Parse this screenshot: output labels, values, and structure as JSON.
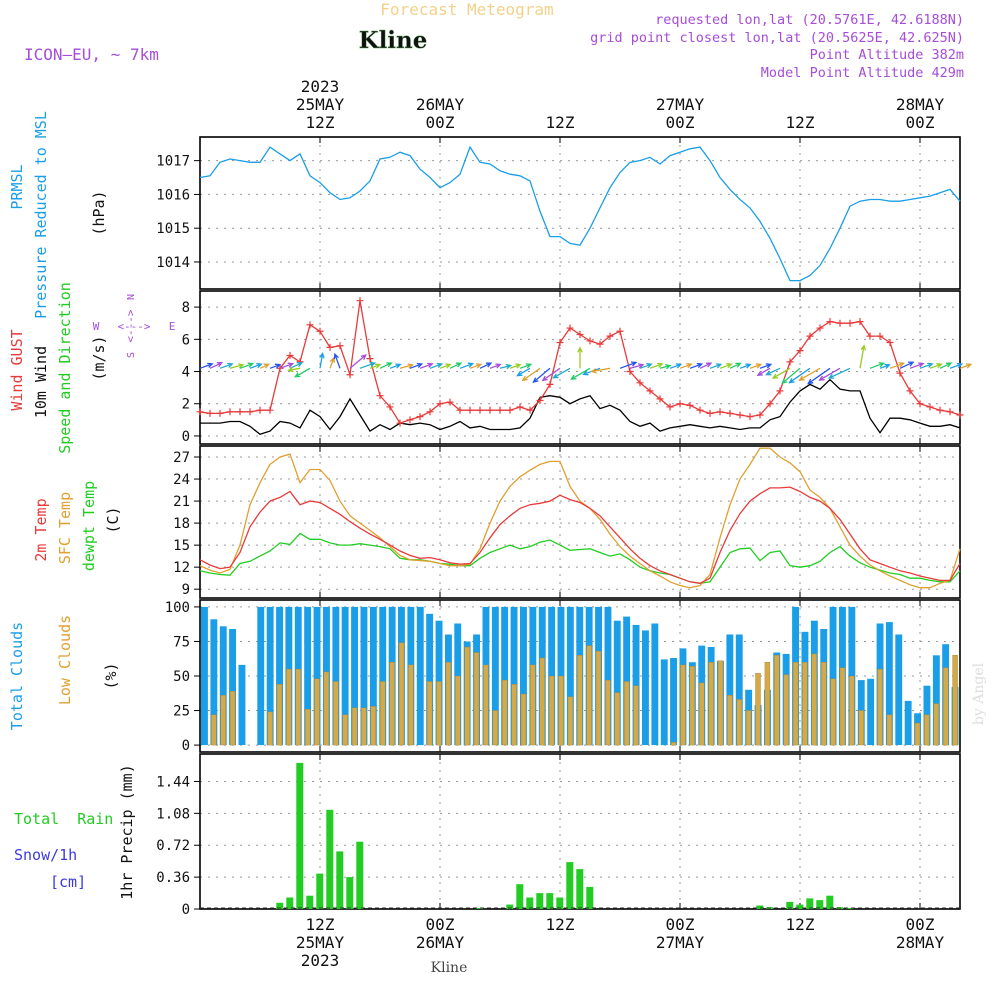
{
  "header": {
    "subtitle": "Forecast Meteogram",
    "location": "Kline",
    "model": "ICON—EU, ~ 7km",
    "requested": "requested lon,lat (20.5761E, 42.6188N)",
    "gridpoint": "grid point closest lon,lat (20.5625E, 42.625N)",
    "point_alt": "Point Altitude 382m",
    "model_alt": "Model Point Altitude 429m",
    "footer_location": "Kline",
    "watermark": "by Angel"
  },
  "colors": {
    "pressure": "#1a9ee8",
    "gust": "#e83a3a",
    "wind": "#000000",
    "temp2m": "#e83a3a",
    "sfc": "#e0a030",
    "dew": "#22cc22",
    "total_cloud": "#1a9ee8",
    "low_cloud": "#d4a94a",
    "rain": "#22cc22",
    "purple": "#a64dd9",
    "snow": "#3a3ae0"
  },
  "time_axis": {
    "top_ticks": [
      {
        "x": 12,
        "line1": "2023",
        "line2": "25MAY",
        "line3": "12Z"
      },
      {
        "x": 24,
        "line1": "",
        "line2": "26MAY",
        "line3": "00Z"
      },
      {
        "x": 36,
        "line1": "",
        "line2": "",
        "line3": "12Z"
      },
      {
        "x": 48,
        "line1": "",
        "line2": "27MAY",
        "line3": "00Z"
      },
      {
        "x": 60,
        "line1": "",
        "line2": "",
        "line3": "12Z"
      },
      {
        "x": 72,
        "line1": "",
        "line2": "28MAY",
        "line3": "00Z"
      }
    ],
    "bottom_ticks": [
      {
        "x": 12,
        "line1": "12Z",
        "line2": "25MAY",
        "line3": "2023"
      },
      {
        "x": 24,
        "line1": "00Z",
        "line2": "26MAY",
        "line3": ""
      },
      {
        "x": 36,
        "line1": "12Z",
        "line2": "",
        "line3": ""
      },
      {
        "x": 48,
        "line1": "00Z",
        "line2": "27MAY",
        "line3": ""
      },
      {
        "x": 60,
        "line1": "12Z",
        "line2": "",
        "line3": ""
      },
      {
        "x": 72,
        "line1": "00Z",
        "line2": "28MAY",
        "line3": ""
      }
    ],
    "range_hours": [
      0,
      76
    ]
  },
  "chart_data": [
    {
      "type": "line",
      "title": "PRMSL Pressure Reduced to MSL",
      "label_lines": [
        "PRMSL",
        "Pressure Reduced to MSL"
      ],
      "ylabel": "(hPa)",
      "ylim": [
        1013.2,
        1017.7
      ],
      "yticks": [
        1014,
        1015,
        1016,
        1017
      ],
      "ytick_labels": [
        "1014",
        "1015",
        "1016",
        "1017"
      ],
      "series": [
        {
          "name": "PRMSL",
          "color": "#1a9ee8",
          "values": [
            1016.5,
            1016.55,
            1016.95,
            1017.05,
            1017.0,
            1016.95,
            1016.95,
            1017.4,
            1017.2,
            1017.0,
            1017.2,
            1016.55,
            1016.35,
            1016.05,
            1015.85,
            1015.9,
            1016.1,
            1016.4,
            1017.05,
            1017.1,
            1017.25,
            1017.15,
            1016.75,
            1016.5,
            1016.2,
            1016.35,
            1016.6,
            1017.4,
            1016.95,
            1016.9,
            1016.7,
            1016.6,
            1016.55,
            1016.4,
            1015.5,
            1014.75,
            1014.75,
            1014.55,
            1014.5,
            1015.0,
            1015.6,
            1016.2,
            1016.65,
            1016.95,
            1017.0,
            1017.1,
            1016.9,
            1017.15,
            1017.25,
            1017.35,
            1017.4,
            1017.0,
            1016.5,
            1016.15,
            1015.85,
            1015.6,
            1015.2,
            1014.7,
            1014.1,
            1013.45,
            1013.45,
            1013.6,
            1013.9,
            1014.4,
            1015.0,
            1015.65,
            1015.8,
            1015.85,
            1015.85,
            1015.8,
            1015.8,
            1015.85,
            1015.9,
            1015.95,
            1016.05,
            1016.15,
            1015.8
          ]
        }
      ]
    },
    {
      "type": "line",
      "title": "Wind GUST / 10m Wind Speed and Direction",
      "label_lines": [
        "Wind GUST",
        "10m Wind",
        "Speed and Direction"
      ],
      "ylabel": "(m/s)",
      "compass": {
        "n": "N",
        "s": "S",
        "w": "W",
        "e": "E",
        "arrow": "<--->"
      },
      "ylim": [
        -0.5,
        9.0
      ],
      "yticks": [
        0,
        2,
        4,
        6,
        8
      ],
      "ytick_labels": [
        "0",
        "2",
        "4",
        "6",
        "8"
      ],
      "arrow_level": 4.2,
      "series": [
        {
          "name": "Wind GUST",
          "color": "#e83a3a",
          "marker": "+",
          "values": [
            1.5,
            1.4,
            1.4,
            1.5,
            1.5,
            1.5,
            1.6,
            1.6,
            4.2,
            5.0,
            4.6,
            6.9,
            6.5,
            5.5,
            5.6,
            3.8,
            8.4,
            4.8,
            2.5,
            1.8,
            0.8,
            1.0,
            1.2,
            1.5,
            2.0,
            2.1,
            1.6,
            1.6,
            1.6,
            1.6,
            1.6,
            1.6,
            1.8,
            1.6,
            2.2,
            3.2,
            5.8,
            6.7,
            6.3,
            5.9,
            5.7,
            6.2,
            6.5,
            4.0,
            3.3,
            2.8,
            2.3,
            1.8,
            2.0,
            1.9,
            1.6,
            1.4,
            1.5,
            1.4,
            1.3,
            1.2,
            1.3,
            2.0,
            2.8,
            4.6,
            5.3,
            6.2,
            6.7,
            7.1,
            7.0,
            7.0,
            7.1,
            6.2,
            6.2,
            5.8,
            3.9,
            2.8,
            2.0,
            1.8,
            1.6,
            1.5,
            1.3
          ]
        },
        {
          "name": "10m Wind",
          "color": "#000000",
          "marker": "",
          "values": [
            0.8,
            0.8,
            0.8,
            0.9,
            0.9,
            0.6,
            0.1,
            0.3,
            0.9,
            0.8,
            0.5,
            1.6,
            1.2,
            0.4,
            1.2,
            2.3,
            1.3,
            0.3,
            0.7,
            0.4,
            0.8,
            0.7,
            0.8,
            0.7,
            0.4,
            0.6,
            0.9,
            0.5,
            0.6,
            0.4,
            0.4,
            0.4,
            0.5,
            1.1,
            2.4,
            2.5,
            2.4,
            2.0,
            2.3,
            2.5,
            1.7,
            1.9,
            1.6,
            0.9,
            0.6,
            0.8,
            0.3,
            0.5,
            0.6,
            0.7,
            0.6,
            0.5,
            0.6,
            0.5,
            0.4,
            0.5,
            0.5,
            1.0,
            1.2,
            2.1,
            2.8,
            3.2,
            2.9,
            3.5,
            2.9,
            2.8,
            2.8,
            1.1,
            0.2,
            1.1,
            1.1,
            1.0,
            0.8,
            0.6,
            0.6,
            0.7,
            0.5
          ]
        }
      ],
      "wind_direction_deg": [
        250,
        245,
        250,
        255,
        250,
        250,
        245,
        250,
        250,
        245,
        80,
        60,
        190,
        200,
        160,
        230,
        250,
        250,
        245,
        250,
        255,
        250,
        250,
        250,
        250,
        245,
        250,
        250,
        245,
        250,
        255,
        250,
        250,
        60,
        55,
        50,
        55,
        60,
        180,
        60,
        70,
        80,
        250,
        255,
        250,
        250,
        255,
        250,
        250,
        250,
        245,
        250,
        250,
        245,
        250,
        250,
        250,
        60,
        65,
        60,
        50,
        55,
        60,
        55,
        60,
        65,
        190,
        250,
        250,
        250,
        245,
        250,
        250,
        250,
        245,
        250,
        250
      ]
    },
    {
      "type": "line",
      "title": "2m Temp / SFC Temp / dewpt Temp",
      "label_lines": [
        "2m Temp",
        "SFC Temp",
        "dewpt Temp"
      ],
      "ylabel": "(C)",
      "ylim": [
        7.8,
        28.5
      ],
      "yticks": [
        9,
        12,
        15,
        18,
        21,
        24,
        27
      ],
      "ytick_labels": [
        "9",
        "12",
        "15",
        "18",
        "21",
        "24",
        "27"
      ],
      "series": [
        {
          "name": "2m Temp",
          "color": "#e83a3a",
          "values": [
            13.0,
            12.3,
            11.8,
            12.0,
            14.0,
            17.5,
            19.5,
            21.0,
            21.5,
            22.3,
            20.5,
            21.0,
            20.8,
            20.0,
            19.2,
            18.2,
            17.3,
            16.5,
            15.8,
            15.0,
            14.2,
            13.6,
            13.2,
            13.3,
            13.0,
            12.6,
            12.4,
            12.5,
            14.0,
            16.0,
            17.8,
            19.0,
            20.0,
            20.5,
            20.7,
            21.0,
            21.8,
            21.2,
            20.8,
            20.0,
            19.0,
            17.5,
            16.0,
            14.5,
            13.2,
            12.2,
            11.5,
            11.0,
            10.5,
            10.0,
            9.8,
            10.5,
            14.0,
            17.0,
            19.3,
            21.0,
            22.0,
            22.8,
            22.8,
            22.9,
            22.3,
            21.5,
            21.0,
            20.0,
            18.5,
            16.5,
            14.5,
            13.0,
            12.5,
            12.0,
            11.5,
            11.2,
            10.8,
            10.5,
            10.2,
            10.2,
            12.5
          ]
        },
        {
          "name": "SFC Temp",
          "color": "#e0a030",
          "values": [
            12.2,
            11.6,
            11.2,
            11.7,
            15.0,
            20.5,
            23.5,
            26.0,
            27.0,
            27.4,
            23.5,
            25.3,
            25.3,
            23.8,
            21.0,
            19.0,
            18.0,
            17.0,
            16.0,
            14.8,
            13.6,
            13.0,
            12.9,
            12.8,
            12.5,
            12.2,
            12.2,
            12.4,
            14.5,
            18.0,
            21.0,
            23.0,
            24.3,
            25.2,
            26.0,
            26.4,
            26.4,
            23.0,
            21.0,
            20.0,
            18.5,
            16.5,
            14.8,
            13.5,
            12.5,
            11.5,
            10.8,
            10.0,
            9.5,
            9.2,
            9.5,
            11.0,
            16.0,
            20.5,
            24.0,
            26.0,
            28.2,
            28.2,
            27.0,
            26.2,
            25.0,
            22.5,
            21.5,
            20.0,
            17.5,
            15.0,
            13.5,
            12.3,
            11.5,
            10.8,
            10.2,
            9.6,
            9.2,
            9.2,
            9.8,
            10.2,
            14.5
          ]
        },
        {
          "name": "dewpt Temp",
          "color": "#22cc22",
          "values": [
            11.5,
            11.2,
            11.0,
            10.9,
            12.5,
            12.8,
            13.5,
            14.2,
            15.3,
            15.1,
            16.6,
            15.8,
            15.8,
            15.3,
            15.0,
            15.0,
            15.2,
            15.0,
            14.8,
            14.5,
            13.2,
            13.0,
            13.0,
            12.8,
            12.5,
            12.4,
            12.2,
            12.2,
            13.2,
            14.0,
            14.5,
            15.0,
            14.5,
            14.8,
            15.4,
            15.7,
            15.0,
            14.3,
            14.4,
            14.5,
            14.0,
            13.5,
            13.8,
            13.0,
            12.0,
            11.5,
            11.2,
            11.0,
            10.5,
            10.0,
            9.8,
            10.0,
            12.0,
            14.0,
            14.5,
            14.6,
            12.9,
            14.0,
            14.2,
            12.2,
            12.0,
            12.2,
            12.8,
            14.0,
            14.8,
            13.5,
            12.6,
            12.0,
            11.6,
            11.2,
            11.0,
            10.5,
            10.5,
            10.2,
            10.0,
            10.0,
            11.5
          ]
        }
      ]
    },
    {
      "type": "bar",
      "title": "Total Clouds / Low Clouds",
      "label_lines": [
        "Total Clouds",
        "Low Clouds"
      ],
      "ylabel": "(%)",
      "ylim": [
        -5,
        105
      ],
      "yticks": [
        0,
        25,
        50,
        75,
        100
      ],
      "ytick_labels": [
        "0",
        "25",
        "50",
        "75",
        "100"
      ],
      "series": [
        {
          "name": "Total Clouds",
          "color": "#1a9ee8",
          "values": [
            100,
            91,
            86,
            84,
            58,
            0,
            100,
            100,
            100,
            100,
            100,
            100,
            100,
            100,
            100,
            100,
            100,
            100,
            100,
            100,
            100,
            100,
            100,
            100,
            95,
            90,
            80,
            88,
            75,
            80,
            100,
            100,
            100,
            100,
            100,
            100,
            100,
            100,
            100,
            100,
            100,
            100,
            100,
            100,
            90,
            93,
            87,
            83,
            88,
            62,
            63,
            70,
            60,
            72,
            71,
            61,
            80,
            80,
            40,
            29,
            40,
            67,
            66,
            100,
            82,
            90,
            84,
            100,
            100,
            100,
            47,
            48,
            88,
            89,
            80,
            32,
            23,
            43,
            65,
            73,
            42
          ]
        },
        {
          "name": "Low Clouds",
          "color": "#d4a94a",
          "values": [
            0,
            22,
            36,
            39,
            0,
            0,
            0,
            24,
            44,
            55,
            55,
            26,
            48,
            53,
            46,
            22,
            27,
            27,
            28,
            46,
            60,
            74,
            58,
            0,
            46,
            46,
            60,
            50,
            71,
            67,
            58,
            25,
            47,
            44,
            37,
            58,
            63,
            50,
            50,
            35,
            65,
            72,
            68,
            47,
            38,
            46,
            43,
            0,
            0,
            0,
            2,
            58,
            57,
            45,
            60,
            61,
            36,
            33,
            25,
            52,
            60,
            65,
            51,
            60,
            60,
            66,
            60,
            48,
            56,
            50,
            25,
            0,
            55,
            22,
            0,
            0,
            16,
            22,
            30,
            56,
            65
          ]
        }
      ]
    },
    {
      "type": "bar",
      "title": "1hr Precip",
      "label_lines": [
        "Total  Rain",
        "Snow/1h",
        "[cm]"
      ],
      "ylabel": "1hr Precip (mm)",
      "ylim": [
        0,
        1.75
      ],
      "yticks": [
        0,
        0.36,
        0.72,
        1.08,
        1.44
      ],
      "ytick_labels": [
        "0",
        "0.36",
        "0.72",
        "1.08",
        "1.44"
      ],
      "series": [
        {
          "name": "Total Rain",
          "color": "#22cc22",
          "values": [
            0,
            0,
            0,
            0,
            0,
            0,
            0,
            0,
            0.07,
            0.13,
            1.65,
            0.15,
            0.4,
            1.12,
            0.65,
            0.36,
            0.76,
            0,
            0,
            0,
            0,
            0,
            0,
            0,
            0,
            0,
            0,
            0,
            0.01,
            0,
            0,
            0.05,
            0.28,
            0.13,
            0.18,
            0.18,
            0.13,
            0.53,
            0.45,
            0.25,
            0,
            0,
            0,
            0,
            0,
            0,
            0,
            0,
            0,
            0,
            0,
            0,
            0,
            0,
            0,
            0,
            0.04,
            0.02,
            0,
            0.08,
            0.05,
            0.12,
            0.1,
            0.15,
            0.02,
            0.01,
            0,
            0,
            0,
            0,
            0,
            0,
            0,
            0,
            0,
            0,
            0
          ]
        }
      ]
    }
  ]
}
